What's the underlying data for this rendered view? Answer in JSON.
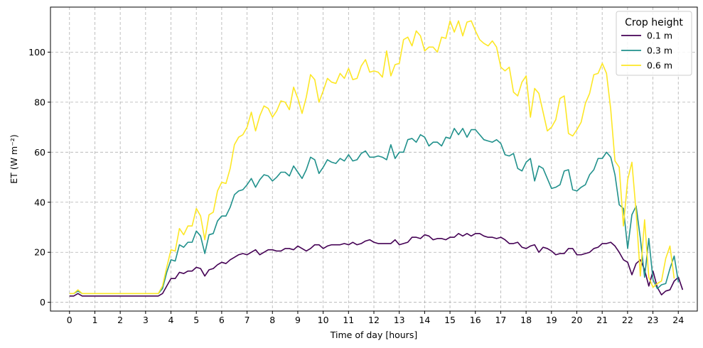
{
  "chart_data": {
    "type": "line",
    "xlabel": "Time of day [hours]",
    "ylabel": "ET (W m⁻²)",
    "xlim": [
      -0.75,
      24.75
    ],
    "ylim": [
      -3.5,
      118
    ],
    "xticks": [
      0,
      1,
      2,
      3,
      4,
      5,
      6,
      7,
      8,
      9,
      10,
      11,
      12,
      13,
      14,
      15,
      16,
      17,
      18,
      19,
      20,
      21,
      22,
      23,
      24
    ],
    "yticks": [
      0,
      20,
      40,
      60,
      80,
      100
    ],
    "grid": true,
    "legend": {
      "title": "Crop height",
      "placement": "top-right"
    },
    "x_start": 0,
    "x_step": 0.1667,
    "series": [
      {
        "name": "0.1 m",
        "color": "#440154",
        "values": [
          2.5,
          2.5,
          3.5,
          2.5,
          2.5,
          2.5,
          2.5,
          2.5,
          2.5,
          2.5,
          2.5,
          2.5,
          2.5,
          2.5,
          2.5,
          2.5,
          2.5,
          2.5,
          2.5,
          2.5,
          2.5,
          2.5,
          3.5,
          6.5,
          9.5,
          9.5,
          12,
          11.5,
          12.5,
          12.5,
          14,
          13.5,
          10.5,
          13,
          13.5,
          15,
          16,
          15.5,
          17,
          18,
          19,
          19.5,
          19,
          20,
          21,
          19,
          20,
          21,
          21,
          20.5,
          20.5,
          21.5,
          21.5,
          21,
          22.5,
          21.5,
          20.5,
          21.5,
          23,
          23,
          21.5,
          22.5,
          23,
          23,
          23,
          23.5,
          23,
          24,
          23,
          23.5,
          24.5,
          25,
          24,
          23.5,
          23.5,
          23.5,
          23.5,
          25,
          23,
          23.5,
          24,
          26,
          26,
          25.5,
          27,
          26.5,
          25,
          25.5,
          25.5,
          25,
          26,
          26,
          27.5,
          26.5,
          27.5,
          26.5,
          27.5,
          27.5,
          26.5,
          26,
          26,
          25.5,
          26,
          25,
          23.5,
          23.5,
          24,
          22,
          21.5,
          22.5,
          23,
          20,
          22,
          21.5,
          20.5,
          19,
          19.5,
          19.5,
          21.5,
          21.5,
          19,
          19,
          19.5,
          20,
          21.5,
          22,
          23.5,
          23.5,
          24,
          22.5,
          20,
          17,
          16,
          11,
          15.5,
          17,
          13,
          6.5,
          12.5,
          6,
          3,
          4.5,
          5,
          8.5,
          10,
          5
        ]
      },
      {
        "name": "0.3 m",
        "color": "#21918c",
        "values": [
          3.5,
          3.5,
          4.5,
          3.5,
          3.5,
          3.5,
          3.5,
          3.5,
          3.5,
          3.5,
          3.5,
          3.5,
          3.5,
          3.5,
          3.5,
          3.5,
          3.5,
          3.5,
          3.5,
          3.5,
          3.5,
          3.5,
          5.5,
          12,
          17,
          16.5,
          23,
          22,
          24,
          24,
          28.5,
          26.5,
          19.5,
          27,
          27.5,
          32.5,
          34.5,
          34.5,
          38,
          43,
          44.5,
          45,
          47,
          49.5,
          46,
          49,
          51,
          50.5,
          48.5,
          50,
          52,
          52,
          50.5,
          54.5,
          52,
          49.5,
          53,
          58,
          57,
          51.5,
          54,
          57,
          56,
          55.5,
          57.5,
          56.5,
          59,
          56.5,
          57,
          59.5,
          60.5,
          58,
          58,
          58.5,
          58,
          57,
          63,
          57.5,
          60,
          60,
          65,
          65.5,
          64,
          67,
          66,
          62.5,
          64,
          64,
          62.5,
          66,
          65.5,
          69.5,
          67,
          69.5,
          66,
          69,
          69,
          67,
          65,
          64.5,
          64,
          65,
          63.5,
          59,
          58.5,
          59.5,
          53.5,
          52.5,
          56,
          57.5,
          48.5,
          54.5,
          53.5,
          49.5,
          45.5,
          46,
          47,
          52.5,
          53,
          45,
          44.5,
          46,
          47,
          51,
          53,
          57.5,
          57.5,
          60,
          58,
          51,
          39,
          37.5,
          21.5,
          35,
          38.5,
          25.5,
          10,
          25.5,
          9,
          5.5,
          7,
          7.5,
          13.5,
          18.5,
          8
        ]
      },
      {
        "name": "0.6 m",
        "color": "#fde725",
        "values": [
          3.5,
          3.5,
          5,
          3.5,
          3.5,
          3.5,
          3.5,
          3.5,
          3.5,
          3.5,
          3.5,
          3.5,
          3.5,
          3.5,
          3.5,
          3.5,
          3.5,
          3.5,
          3.5,
          3.5,
          3.5,
          3.5,
          6.5,
          14,
          21,
          20.5,
          29.5,
          27,
          30.5,
          30.5,
          37.5,
          34.5,
          25,
          35,
          36,
          44.5,
          48,
          47.5,
          53.5,
          63,
          66,
          67,
          70,
          76,
          68.5,
          74.5,
          78.5,
          77.5,
          74,
          76.5,
          80.5,
          80,
          77,
          86,
          81.5,
          75.5,
          82,
          91,
          89,
          80,
          84.5,
          89.5,
          88,
          87.5,
          91.5,
          89.5,
          93.5,
          89,
          89.5,
          94.5,
          97,
          92,
          92.5,
          92,
          90,
          100.5,
          90.5,
          95,
          95.5,
          105,
          106,
          102.5,
          108.5,
          106.5,
          100.5,
          102,
          102,
          100,
          106,
          105.5,
          112.5,
          108,
          112.5,
          106.5,
          112,
          112.5,
          108.5,
          105,
          103.5,
          102.5,
          104.5,
          102,
          94,
          92.5,
          94,
          84,
          82.5,
          88,
          90.5,
          74,
          85.5,
          83.5,
          76,
          68.5,
          70,
          73,
          81.5,
          82.5,
          67.5,
          66.5,
          69,
          72,
          79.5,
          83.5,
          91,
          91.5,
          95.5,
          91.5,
          77,
          56.5,
          54,
          30.5,
          49,
          56,
          36,
          10.5,
          33,
          10,
          6,
          7.5,
          8.5,
          17.5,
          22.5,
          9.5
        ]
      }
    ]
  }
}
